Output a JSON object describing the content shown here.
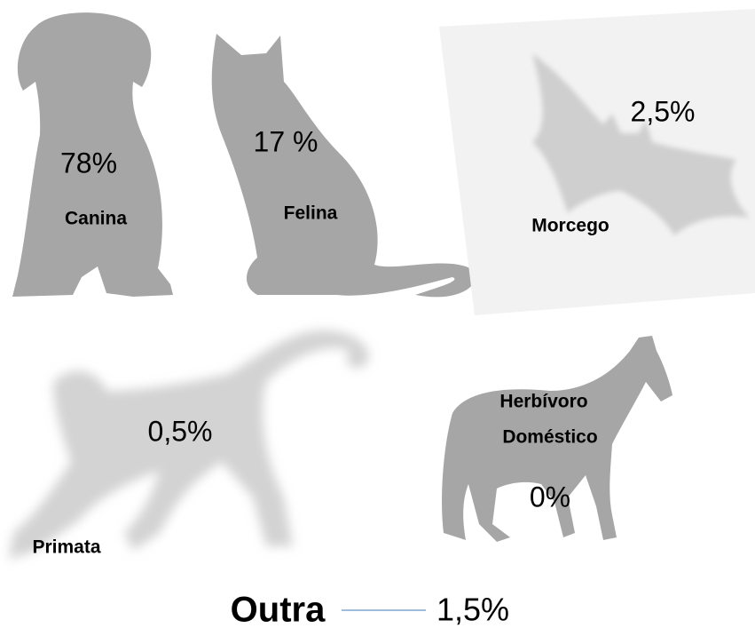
{
  "items": [
    {
      "label": "Canina",
      "value": "78%"
    },
    {
      "label": "Felina",
      "value": "17 %"
    },
    {
      "label": "Morcego",
      "value": "2,5%"
    },
    {
      "label": "Primata",
      "value": "0,5%"
    },
    {
      "label": [
        "Herbívoro",
        "Doméstico"
      ],
      "value": "0%"
    }
  ],
  "other": {
    "label": "Outra",
    "value": "1,5%"
  }
}
